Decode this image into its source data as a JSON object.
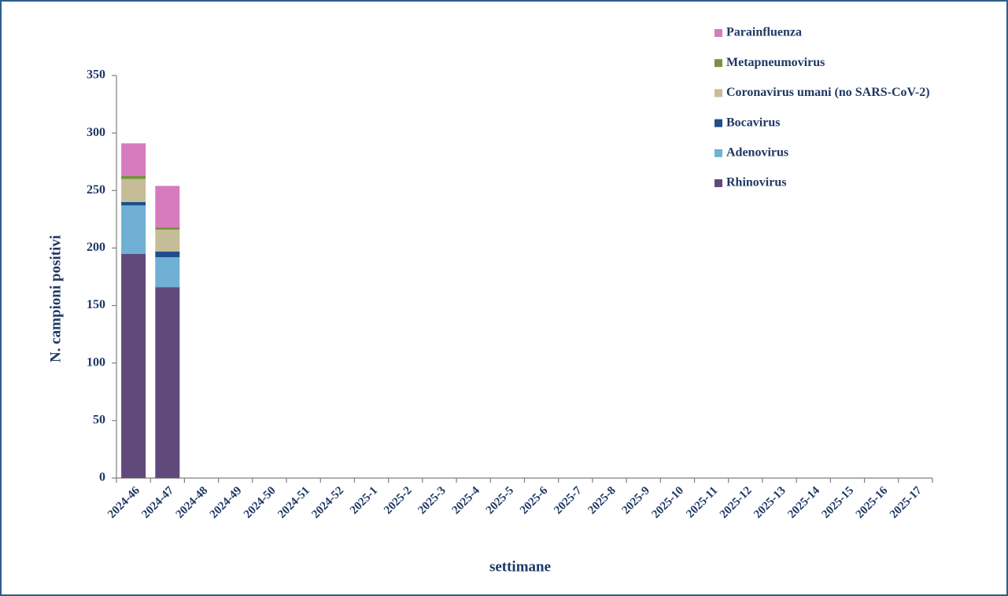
{
  "chart_data": {
    "type": "bar",
    "stacked": true,
    "xlabel": "settimane",
    "ylabel": "N. campioni positivi",
    "categories": [
      "2024-46",
      "2024-47",
      "2024-48",
      "2024-49",
      "2024-50",
      "2024-51",
      "2024-52",
      "2025-1",
      "2025-2",
      "2025-3",
      "2025-4",
      "2025-5",
      "2025-6",
      "2025-7",
      "2025-8",
      "2025-9",
      "2025-10",
      "2025-11",
      "2025-12",
      "2025-13",
      "2025-14",
      "2025-15",
      "2025-16",
      "2025-17"
    ],
    "series": [
      {
        "name": "Rhinovirus",
        "color": "#604a7b",
        "values": [
          195,
          166,
          null,
          null,
          null,
          null,
          null,
          null,
          null,
          null,
          null,
          null,
          null,
          null,
          null,
          null,
          null,
          null,
          null,
          null,
          null,
          null,
          null,
          null
        ]
      },
      {
        "name": "Adenovirus",
        "color": "#6fb0d4",
        "values": [
          42,
          26,
          null,
          null,
          null,
          null,
          null,
          null,
          null,
          null,
          null,
          null,
          null,
          null,
          null,
          null,
          null,
          null,
          null,
          null,
          null,
          null,
          null,
          null
        ]
      },
      {
        "name": "Bocavirus",
        "color": "#1f4e8c",
        "values": [
          3,
          5,
          null,
          null,
          null,
          null,
          null,
          null,
          null,
          null,
          null,
          null,
          null,
          null,
          null,
          null,
          null,
          null,
          null,
          null,
          null,
          null,
          null,
          null
        ]
      },
      {
        "name": "Coronavirus umani (no SARS-CoV-2)",
        "color": "#c4bd97",
        "values": [
          20,
          19,
          null,
          null,
          null,
          null,
          null,
          null,
          null,
          null,
          null,
          null,
          null,
          null,
          null,
          null,
          null,
          null,
          null,
          null,
          null,
          null,
          null,
          null
        ]
      },
      {
        "name": "Metapneumovirus",
        "color": "#77933c",
        "values": [
          3,
          2,
          null,
          null,
          null,
          null,
          null,
          null,
          null,
          null,
          null,
          null,
          null,
          null,
          null,
          null,
          null,
          null,
          null,
          null,
          null,
          null,
          null,
          null
        ]
      },
      {
        "name": "Parainfluenza",
        "color": "#d77bbf",
        "values": [
          28,
          36,
          null,
          null,
          null,
          null,
          null,
          null,
          null,
          null,
          null,
          null,
          null,
          null,
          null,
          null,
          null,
          null,
          null,
          null,
          null,
          null,
          null,
          null
        ]
      }
    ],
    "ylim": [
      0,
      350
    ],
    "yticks": [
      0,
      50,
      100,
      150,
      200,
      250,
      300,
      350
    ],
    "grid": false,
    "legend": "upper right"
  }
}
